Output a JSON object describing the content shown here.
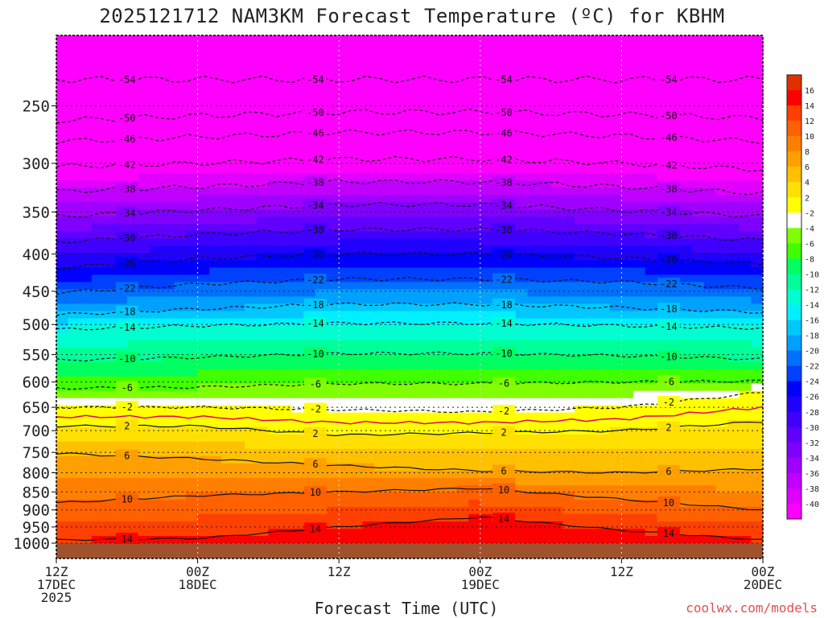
{
  "title": "2025121712 NAM3KM Forecast Temperature (ºC) for KBHM",
  "xlabel": "Forecast Time (UTC)",
  "credit": "coolwx.com/models",
  "chart_data": {
    "type": "heatmap",
    "title": "2025121712 NAM3KM Forecast Temperature (ºC) for KBHM",
    "xlabel": "Forecast Time (UTC)",
    "ylabel": "",
    "y_scale": "log-pressure",
    "y_ticks": [
      250,
      300,
      350,
      400,
      450,
      500,
      550,
      600,
      650,
      700,
      750,
      800,
      850,
      900,
      950,
      1000
    ],
    "x_hours": [
      0,
      12,
      24,
      36,
      48,
      60
    ],
    "x_ticks": [
      {
        "hour": 0,
        "lines": [
          "12Z",
          "17DEC",
          "2025"
        ]
      },
      {
        "hour": 12,
        "lines": [
          "00Z",
          "18DEC"
        ]
      },
      {
        "hour": 24,
        "lines": [
          "12Z"
        ]
      },
      {
        "hour": 36,
        "lines": [
          "00Z",
          "19DEC"
        ]
      },
      {
        "hour": 48,
        "lines": [
          "12Z"
        ]
      },
      {
        "hour": 60,
        "lines": [
          "00Z",
          "20DEC"
        ]
      }
    ],
    "grid": true,
    "colorbar": {
      "levels": [
        -40,
        -38,
        -36,
        -34,
        -32,
        -30,
        -28,
        -26,
        -24,
        -22,
        -20,
        -18,
        -16,
        -14,
        -12,
        -10,
        -8,
        -6,
        -4,
        -2,
        2,
        4,
        6,
        8,
        10,
        12,
        14,
        16
      ],
      "colors": [
        "#ff00ff",
        "#e000ff",
        "#c000ff",
        "#a000ff",
        "#8000ff",
        "#6000ff",
        "#4000ff",
        "#2000ff",
        "#0000ff",
        "#0040ff",
        "#0070ff",
        "#00a0ff",
        "#00c8ff",
        "#00f0ff",
        "#00ffd0",
        "#00ff99",
        "#00ff60",
        "#40ff00",
        "#80ff00",
        "#ffffff",
        "#ffff00",
        "#ffe000",
        "#ffc000",
        "#ffa000",
        "#ff8000",
        "#ff6000",
        "#ff4000",
        "#ff0000",
        "#e03000"
      ]
    },
    "isotherms": [
      {
        "value": -54,
        "pressure": [
          230,
          230,
          230,
          230,
          230,
          230
        ]
      },
      {
        "value": -50,
        "pressure": [
          262,
          258,
          255,
          255,
          257,
          260
        ]
      },
      {
        "value": -46,
        "pressure": [
          280,
          276,
          272,
          272,
          275,
          280
        ]
      },
      {
        "value": -42,
        "pressure": [
          303,
          300,
          296,
          296,
          300,
          306
        ]
      },
      {
        "value": -38,
        "pressure": [
          328,
          323,
          318,
          318,
          323,
          330
        ]
      },
      {
        "value": -34,
        "pressure": [
          355,
          348,
          342,
          342,
          348,
          355
        ]
      },
      {
        "value": -30,
        "pressure": [
          385,
          376,
          370,
          370,
          375,
          383
        ]
      },
      {
        "value": -26,
        "pressure": [
          418,
          406,
          400,
          400,
          405,
          413
        ]
      },
      {
        "value": -22,
        "pressure": [
          452,
          440,
          433,
          433,
          437,
          446
        ]
      },
      {
        "value": -18,
        "pressure": [
          485,
          476,
          469,
          469,
          474,
          481
        ]
      },
      {
        "value": -14,
        "pressure": [
          508,
          502,
          498,
          498,
          502,
          506
        ]
      },
      {
        "value": -10,
        "pressure": [
          560,
          555,
          548,
          548,
          552,
          558
        ]
      },
      {
        "value": -6,
        "pressure": [
          612,
          610,
          603,
          603,
          600,
          598
        ]
      },
      {
        "value": -2,
        "pressure": [
          650,
          650,
          655,
          660,
          650,
          620
        ]
      },
      {
        "value": 2,
        "pressure": [
          690,
          690,
          710,
          705,
          700,
          680
        ]
      },
      {
        "value": 6,
        "pressure": [
          752,
          765,
          782,
          795,
          800,
          790
        ]
      },
      {
        "value": 10,
        "pressure": [
          880,
          860,
          850,
          840,
          870,
          900
        ]
      },
      {
        "value": 14,
        "pressure": [
          990,
          985,
          950,
          920,
          960,
          990
        ]
      }
    ]
  }
}
